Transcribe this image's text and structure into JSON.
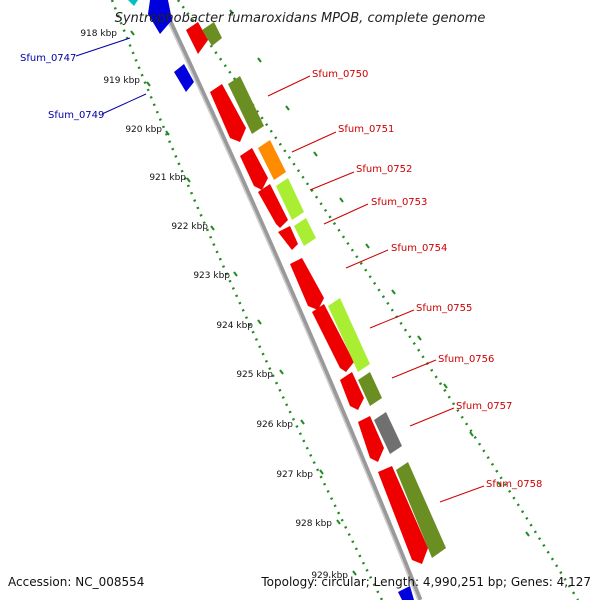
{
  "title": "Syntrophobacter fumaroxidans MPOB, complete genome",
  "footer": {
    "accession": "Accession: NC_008554",
    "info": "Topology: circular; Length: 4,990,251 bp; Genes: 4,127"
  },
  "ticks": [
    "918 kbp",
    "919 kbp",
    "920 kbp",
    "921 kbp",
    "922 kbp",
    "923 kbp",
    "924 kbp",
    "925 kbp",
    "926 kbp",
    "927 kbp",
    "928 kbp",
    "929 kbp"
  ],
  "gene_labels": [
    {
      "text": "Sfum_0747",
      "color": "#0000aa"
    },
    {
      "text": "Sfum_0749",
      "color": "#0000aa"
    },
    {
      "text": "Sfum_0750",
      "color": "#cc0000"
    },
    {
      "text": "Sfum_0751",
      "color": "#cc0000"
    },
    {
      "text": "Sfum_0752",
      "color": "#cc0000"
    },
    {
      "text": "Sfum_0753",
      "color": "#cc0000"
    },
    {
      "text": "Sfum_0754",
      "color": "#cc0000"
    },
    {
      "text": "Sfum_0755",
      "color": "#cc0000"
    },
    {
      "text": "Sfum_0756",
      "color": "#cc0000"
    },
    {
      "text": "Sfum_0757",
      "color": "#cc0000"
    },
    {
      "text": "Sfum_0758",
      "color": "#cc0000"
    }
  ],
  "colors": {
    "red": "#ee0000",
    "olive": "#6b8e23",
    "lime": "#aaee33",
    "orange": "#ff8c00",
    "gray": "#707070",
    "blue": "#0000dd",
    "backbone": "#999999",
    "dots": "#228b22"
  }
}
